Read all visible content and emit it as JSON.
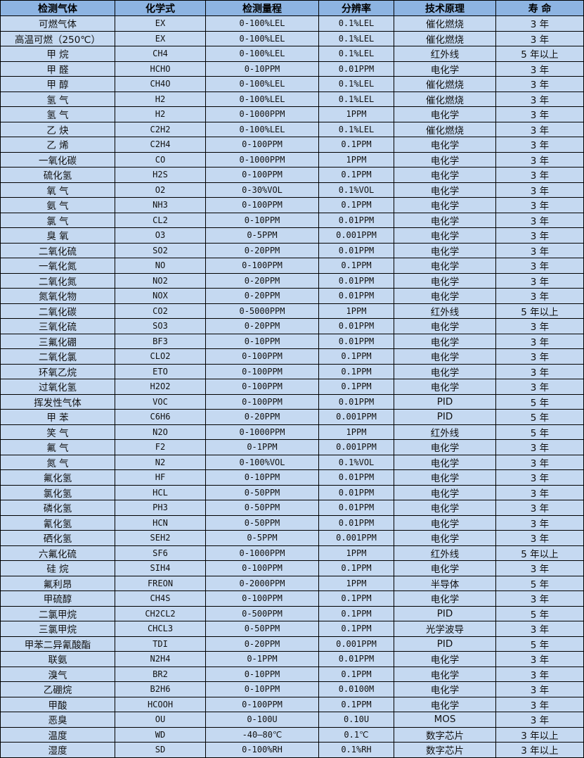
{
  "colors": {
    "header_bg": "#8db4e2",
    "row_bg": "#c5d9f1"
  },
  "headers": [
    "检测气体",
    "化学式",
    "检测量程",
    "分辨率",
    "技术原理",
    "寿 命"
  ],
  "rows": [
    [
      "可燃气体",
      "EX",
      "0-100%LEL",
      "0.1%LEL",
      "催化燃烧",
      "3 年"
    ],
    [
      "高温可燃（250℃）",
      "EX",
      "0-100%LEL",
      "0.1%LEL",
      "催化燃烧",
      "3 年"
    ],
    [
      "甲 烷",
      "CH4",
      "0-100%LEL",
      "0.1%LEL",
      "红外线",
      "5 年以上"
    ],
    [
      "甲 醛",
      "HCHO",
      "0-10PPM",
      "0.01PPM",
      "电化学",
      "3 年"
    ],
    [
      "甲 醇",
      "CH4O",
      "0-100%LEL",
      "0.1%LEL",
      "催化燃烧",
      "3 年"
    ],
    [
      "氢 气",
      "H2",
      "0-100%LEL",
      "0.1%LEL",
      "催化燃烧",
      "3 年"
    ],
    [
      "氢 气",
      "H2",
      "0-1000PPM",
      "1PPM",
      "电化学",
      "3 年"
    ],
    [
      "乙 炔",
      "C2H2",
      "0-100%LEL",
      "0.1%LEL",
      "催化燃烧",
      "3 年"
    ],
    [
      "乙 烯",
      "C2H4",
      "0-100PPM",
      "0.1PPM",
      "电化学",
      "3 年"
    ],
    [
      "一氧化碳",
      "CO",
      "0-1000PPM",
      "1PPM",
      "电化学",
      "3 年"
    ],
    [
      "硫化氢",
      "H2S",
      "0-100PPM",
      "0.1PPM",
      "电化学",
      "3 年"
    ],
    [
      "氧 气",
      "O2",
      "0-30%VOL",
      "0.1%VOL",
      "电化学",
      "3 年"
    ],
    [
      "氨 气",
      "NH3",
      "0-100PPM",
      "0.1PPM",
      "电化学",
      "3 年"
    ],
    [
      "氯 气",
      "CL2",
      "0-10PPM",
      "0.01PPM",
      "电化学",
      "3 年"
    ],
    [
      "臭 氧",
      "O3",
      "0-5PPM",
      "0.001PPM",
      "电化学",
      "3 年"
    ],
    [
      "二氧化硫",
      "SO2",
      "0-20PPM",
      "0.01PPM",
      "电化学",
      "3 年"
    ],
    [
      "一氧化氮",
      "NO",
      "0-100PPM",
      "0.1PPM",
      "电化学",
      "3 年"
    ],
    [
      "二氧化氮",
      "NO2",
      "0-20PPM",
      "0.01PPM",
      "电化学",
      "3 年"
    ],
    [
      "氮氧化物",
      "NOX",
      "0-20PPM",
      "0.01PPM",
      "电化学",
      "3 年"
    ],
    [
      "二氧化碳",
      "CO2",
      "0-5000PPM",
      "1PPM",
      "红外线",
      "5 年以上"
    ],
    [
      "三氧化硫",
      "SO3",
      "0-20PPM",
      "0.01PPM",
      "电化学",
      "3 年"
    ],
    [
      "三氟化硼",
      "BF3",
      "0-10PPM",
      "0.01PPM",
      "电化学",
      "3 年"
    ],
    [
      "二氧化氯",
      "CLO2",
      "0-100PPM",
      "0.1PPM",
      "电化学",
      "3 年"
    ],
    [
      "环氧乙烷",
      "ETO",
      "0-100PPM",
      "0.1PPM",
      "电化学",
      "3 年"
    ],
    [
      "过氧化氢",
      "H2O2",
      "0-100PPM",
      "0.1PPM",
      "电化学",
      "3 年"
    ],
    [
      "挥发性气体",
      "VOC",
      "0-100PPM",
      "0.01PPM",
      "PID",
      "5 年"
    ],
    [
      "甲 苯",
      "C6H6",
      "0-20PPM",
      "0.001PPM",
      "PID",
      "5 年"
    ],
    [
      "笑 气",
      "N2O",
      "0-1000PPM",
      "1PPM",
      "红外线",
      "5 年"
    ],
    [
      "氟 气",
      "F2",
      "0-1PPM",
      "0.001PPM",
      "电化学",
      "3 年"
    ],
    [
      "氮 气",
      "N2",
      "0-100%VOL",
      "0.1%VOL",
      "电化学",
      "3 年"
    ],
    [
      "氟化氢",
      "HF",
      "0-10PPM",
      "0.01PPM",
      "电化学",
      "3 年"
    ],
    [
      "氯化氢",
      "HCL",
      "0-50PPM",
      "0.01PPM",
      "电化学",
      "3 年"
    ],
    [
      "磷化氢",
      "PH3",
      "0-50PPM",
      "0.01PPM",
      "电化学",
      "3 年"
    ],
    [
      "氰化氢",
      "HCN",
      "0-50PPM",
      "0.01PPM",
      "电化学",
      "3 年"
    ],
    [
      "硒化氢",
      "SEH2",
      "0-5PPM",
      "0.001PPM",
      "电化学",
      "3 年"
    ],
    [
      "六氟化硫",
      "SF6",
      "0-1000PPM",
      "1PPM",
      "红外线",
      "5 年以上"
    ],
    [
      "硅 烷",
      "SIH4",
      "0-100PPM",
      "0.1PPM",
      "电化学",
      "3 年"
    ],
    [
      "氟利昂",
      "FREON",
      "0-2000PPM",
      "1PPM",
      "半导体",
      "5 年"
    ],
    [
      "甲硫醇",
      "CH4S",
      "0-100PPM",
      "0.1PPM",
      "电化学",
      "3 年"
    ],
    [
      "二氯甲烷",
      "CH2CL2",
      "0-500PPM",
      "0.1PPM",
      "PID",
      "5 年"
    ],
    [
      "三氯甲烷",
      "CHCL3",
      "0-50PPM",
      "0.1PPM",
      "光学波导",
      "3 年"
    ],
    [
      "甲苯二异氰酸酯",
      "TDI",
      "0-20PPM",
      "0.001PPM",
      "PID",
      "5 年"
    ],
    [
      "联氨",
      "N2H4",
      "0-1PPM",
      "0.01PPM",
      "电化学",
      "3 年"
    ],
    [
      "溴气",
      "BR2",
      "0-10PPM",
      "0.1PPM",
      "电化学",
      "3 年"
    ],
    [
      "乙硼烷",
      "B2H6",
      "0-10PPM",
      "0.0100M",
      "电化学",
      "3 年"
    ],
    [
      "甲酸",
      "HCOOH",
      "0-100PPM",
      "0.1PPM",
      "电化学",
      "3 年"
    ],
    [
      "恶臭",
      "OU",
      "0-100U",
      "0.10U",
      "MOS",
      "3 年"
    ],
    [
      "温度",
      "WD",
      "-40—80℃",
      "0.1℃",
      "数字芯片",
      "3 年以上"
    ],
    [
      "湿度",
      "SD",
      "0-100%RH",
      "0.1%RH",
      "数字芯片",
      "3 年以上"
    ]
  ]
}
